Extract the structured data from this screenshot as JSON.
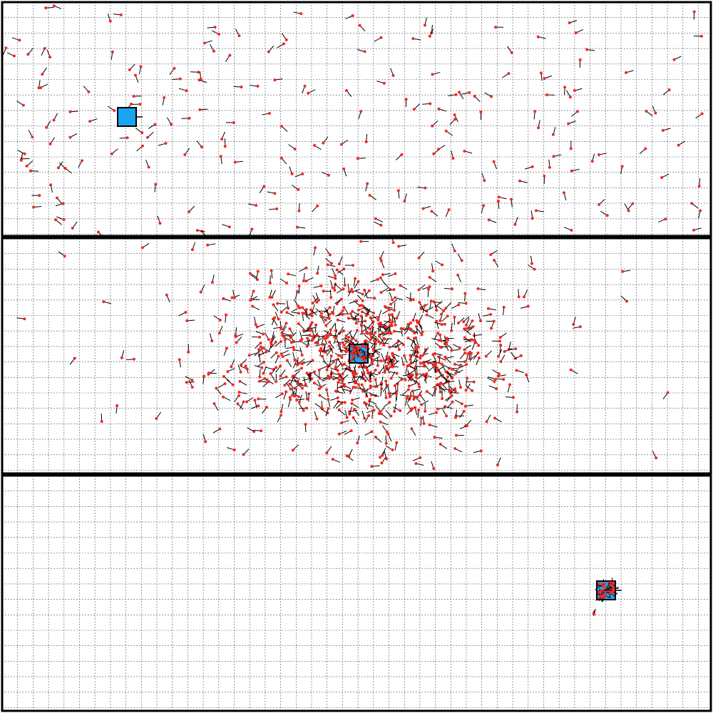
{
  "colors": {
    "background": "#ffffff",
    "grid": "#555555",
    "border": "#000000",
    "agent": "#ee2a24",
    "agent_tail": "#000000",
    "target": "#1aa3f0"
  },
  "panels": [
    {
      "id": "panel-1",
      "description_free": true,
      "target": {
        "x": 178,
        "y": 164,
        "heading": "east"
      },
      "swarm": {
        "state": "dispersed",
        "count": 220,
        "seed": 11
      }
    },
    {
      "id": "panel-2",
      "description_free": true,
      "target": {
        "x": 503,
        "y": 496,
        "heading": "east"
      },
      "swarm": {
        "state": "aggregating",
        "count": 900,
        "seed": 23
      }
    },
    {
      "id": "panel-3",
      "description_free": true,
      "target": {
        "x": 850,
        "y": 828,
        "heading": "east"
      },
      "swarm": {
        "state": "converged",
        "count": 60,
        "seed": 37
      }
    }
  ]
}
